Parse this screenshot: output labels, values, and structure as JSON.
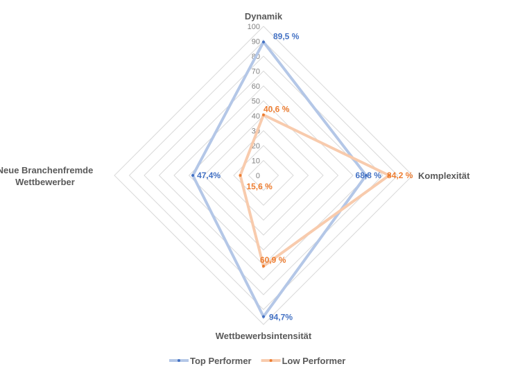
{
  "chart_data": {
    "type": "radar",
    "axes": [
      "Dynamik",
      "Komplexität",
      "Wettbewerbsintensität",
      "Neue Branchenfremde Wettbewerber"
    ],
    "axis_label_lines": [
      [
        "Dynamik"
      ],
      [
        "Komplexität"
      ],
      [
        "Wettbewerbsintensität"
      ],
      [
        "Neue Branchenfremde",
        "Wettbewerber"
      ]
    ],
    "rlim": [
      0,
      100
    ],
    "ticks": [
      "0",
      "10",
      "20",
      "30",
      "40",
      "50",
      "60",
      "70",
      "80",
      "90",
      "100"
    ],
    "grid": true,
    "legend_position": "bottom",
    "series": [
      {
        "name": "Top Performer",
        "values": [
          89.5,
          68.8,
          94.7,
          47.4
        ],
        "data_labels": [
          "89,5 %",
          "68,8 %",
          "94,7%",
          "47,4%"
        ],
        "line_color": "#b4c7e7",
        "marker_color": "#4472c4",
        "label_color": "#4472c4"
      },
      {
        "name": "Low Performer",
        "values": [
          40.6,
          84.2,
          60.9,
          15.6
        ],
        "data_labels": [
          "40,6 %",
          "84,2 %",
          "60,9 %",
          "15,6 %"
        ],
        "line_color": "#f8cbad",
        "marker_color": "#ed7d31",
        "label_color": "#ed7d31"
      }
    ]
  }
}
